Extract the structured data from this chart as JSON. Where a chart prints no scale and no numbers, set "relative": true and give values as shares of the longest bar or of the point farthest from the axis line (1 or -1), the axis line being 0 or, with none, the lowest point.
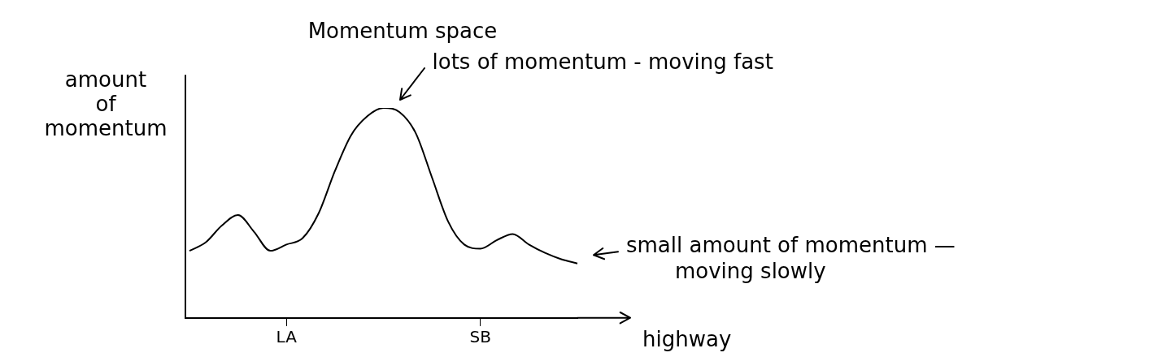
{
  "chart_data": {
    "type": "line",
    "title": "Momentum space",
    "xlabel": "highway",
    "ylabel": "amount of momentum",
    "relative": true,
    "color": "#000000",
    "marker": "none",
    "grid": false,
    "legend": false,
    "categories": [
      null,
      null,
      null,
      null,
      null,
      null,
      "LA",
      null,
      null,
      null,
      null,
      null,
      null,
      null,
      null,
      null,
      null,
      null,
      "SB",
      null,
      null,
      null,
      null,
      null,
      null
    ],
    "values": [
      0.32,
      0.36,
      0.44,
      0.49,
      0.41,
      0.32,
      0.35,
      0.38,
      0.5,
      0.7,
      0.87,
      0.96,
      1,
      0.98,
      0.88,
      0.67,
      0.46,
      0.35,
      0.33,
      0.37,
      0.4,
      0.35,
      0.31,
      0.28,
      0.26
    ],
    "annotations": [
      "lots of momentum - moving fast",
      "small amount of momentum — moving slowly"
    ]
  }
}
